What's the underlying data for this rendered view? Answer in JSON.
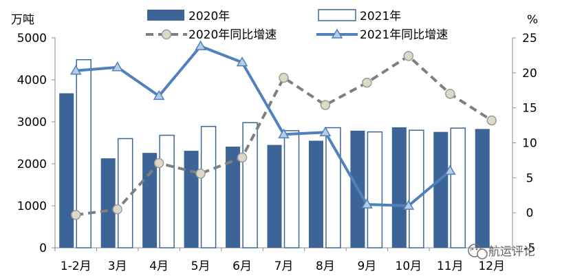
{
  "chart_data": {
    "type": "bar",
    "categories": [
      "1-2月",
      "3月",
      "4月",
      "5月",
      "6月",
      "7月",
      "8月",
      "9月",
      "10月",
      "11月",
      "12月"
    ],
    "left_unit": "万吨",
    "right_unit": "%",
    "left_ylim": [
      0,
      5000
    ],
    "left_ticks": [
      0,
      1000,
      2000,
      3000,
      4000,
      5000
    ],
    "right_ylim": [
      -5,
      25
    ],
    "right_ticks": [
      -5,
      0,
      5,
      10,
      15,
      20,
      25
    ],
    "bar_series": [
      {
        "name": "2020年",
        "color": "#3d6496",
        "values": [
          3680,
          2130,
          2260,
          2310,
          2410,
          2450,
          2550,
          2790,
          2870,
          2760,
          2830
        ]
      },
      {
        "name": "2021年",
        "color": "#ffffff",
        "stroke": "#3d6496",
        "values": [
          4480,
          2600,
          2680,
          2890,
          2980,
          2790,
          2860,
          2760,
          2800,
          2850,
          null
        ]
      }
    ],
    "line_series": [
      {
        "name": "2020年同比增速",
        "color": "#7f7f7f",
        "marker": "circle",
        "dashed": true,
        "values": [
          -0.3,
          0.5,
          7.1,
          5.6,
          7.9,
          19.3,
          15.4,
          18.6,
          22.4,
          17.0,
          13.2
        ]
      },
      {
        "name": "2021年同比增速",
        "color": "#4f81bd",
        "marker": "triangle",
        "dashed": false,
        "values": [
          20.3,
          20.8,
          16.7,
          23.8,
          21.5,
          11.2,
          11.5,
          1.2,
          1.0,
          6.0,
          null
        ]
      }
    ],
    "legend_position": "top",
    "grid": false
  },
  "watermark": {
    "icon": "wechat-icon",
    "text": "航运评论"
  }
}
